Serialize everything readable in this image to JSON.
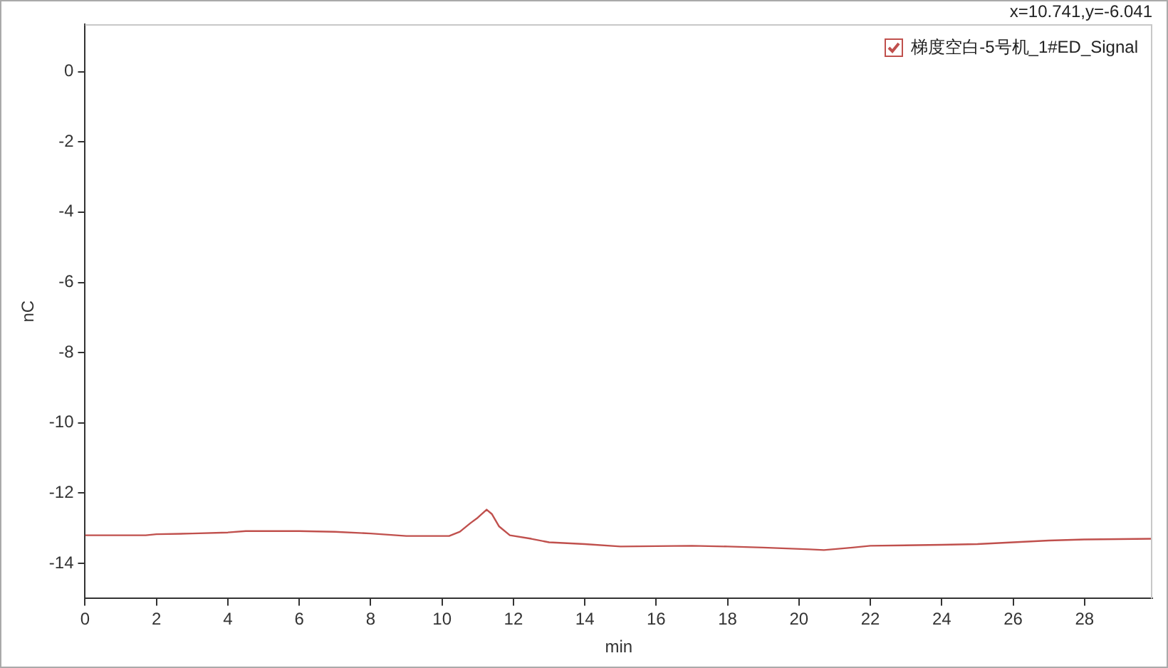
{
  "chart_data": {
    "type": "line",
    "xlabel": "min",
    "ylabel": "nC",
    "annotations": [
      "x=10.741,y=-6.041"
    ],
    "legend": "top right",
    "xlim": [
      0,
      29.9
    ],
    "ylim": [
      -15,
      1.35
    ],
    "xticks": [
      0,
      2,
      4,
      6,
      8,
      10,
      12,
      14,
      16,
      18,
      20,
      22,
      24,
      26,
      28
    ],
    "yticks": [
      0,
      -2,
      -4,
      -6,
      -8,
      -10,
      -12,
      -14
    ],
    "x": [
      0,
      1.7,
      2,
      3,
      4,
      4.5,
      6,
      7,
      8,
      9,
      10.2,
      10.5,
      10.8,
      11,
      11.25,
      11.4,
      11.6,
      11.9,
      12.5,
      13,
      14,
      15,
      17,
      18,
      19,
      20.3,
      20.7,
      21.5,
      22,
      24,
      25,
      26,
      27,
      28,
      29.9
    ],
    "series": [
      {
        "name": "梯度空白-5号机_1#ED_Signal",
        "color": "#c0504d",
        "values": [
          -13.2,
          -13.2,
          -13.17,
          -13.15,
          -13.12,
          -13.08,
          -13.08,
          -13.1,
          -13.15,
          -13.22,
          -13.22,
          -13.1,
          -12.85,
          -12.7,
          -12.47,
          -12.6,
          -12.95,
          -13.2,
          -13.3,
          -13.4,
          -13.45,
          -13.52,
          -13.5,
          -13.52,
          -13.55,
          -13.6,
          -13.62,
          -13.55,
          -13.5,
          -13.47,
          -13.45,
          -13.4,
          -13.35,
          -13.32,
          -13.3
        ]
      }
    ]
  }
}
